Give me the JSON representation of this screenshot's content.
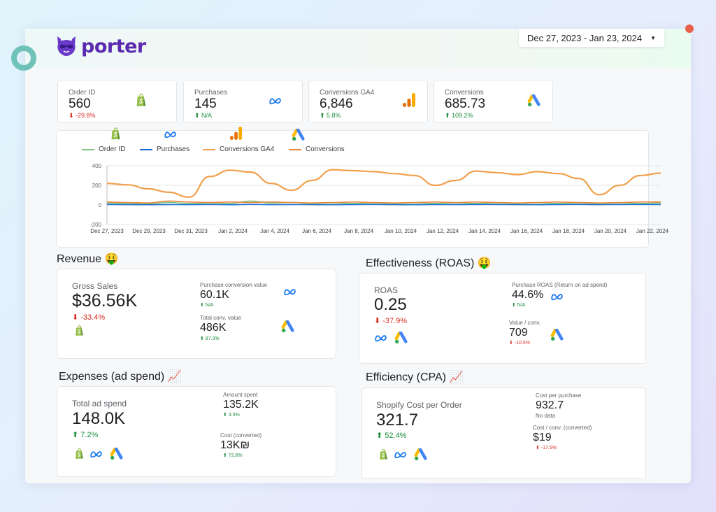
{
  "header": {
    "brand": "porter",
    "date_range": "Dec 27, 2023 - Jan 23, 2024"
  },
  "kpis": [
    {
      "label": "Order ID",
      "value": "560",
      "delta": "⬇ -29.8%",
      "trend": "down",
      "icon": "shopify-icon"
    },
    {
      "label": "Purchases",
      "value": "145",
      "delta": "⬆ N/A",
      "trend": "up",
      "icon": "meta-icon"
    },
    {
      "label": "Conversions GA4",
      "value": "6,846",
      "delta": "⬆ 5.8%",
      "trend": "up",
      "icon": "google-analytics-icon"
    },
    {
      "label": "Conversions",
      "value": "685.73",
      "delta": "⬆ 109.2%",
      "trend": "up",
      "icon": "google-ads-icon"
    }
  ],
  "chart_data": {
    "type": "line",
    "title": "",
    "xlabel": "",
    "ylabel": "",
    "ylim": [
      -200,
      400
    ],
    "yticks": [
      "400",
      "200",
      "0",
      "-200"
    ],
    "xticks": [
      "Dec 27, 2023",
      "Dec 29, 2023",
      "Dec 31, 2023",
      "Jan 2, 2024",
      "Jan 4, 2024",
      "Jan 6, 2024",
      "Jan 8, 2024",
      "Jan 10, 2024",
      "Jan 12, 2024",
      "Jan 14, 2024",
      "Jan 16, 2024",
      "Jan 18, 2024",
      "Jan 20, 2024",
      "Jan 22, 2024"
    ],
    "grid": true,
    "legend_position": "top-left",
    "series": [
      {
        "name": "Order ID",
        "color": "#7cc47f",
        "icon": "shopify-icon",
        "values": [
          20,
          15,
          10,
          25,
          15,
          20,
          15,
          40,
          20,
          25,
          15,
          20,
          15,
          20,
          15,
          20,
          15,
          20,
          15,
          20,
          15,
          20,
          15,
          20,
          15,
          20,
          15,
          20
        ]
      },
      {
        "name": "Purchases",
        "color": "#1a6fd6",
        "icon": "meta-icon",
        "values": [
          5,
          3,
          2,
          4,
          3,
          5,
          2,
          6,
          3,
          4,
          3,
          2,
          4,
          5,
          3,
          2,
          4,
          3,
          5,
          4,
          3,
          2,
          4,
          5,
          3,
          4,
          5,
          4
        ]
      },
      {
        "name": "Conversions GA4",
        "color": "#f0a04b",
        "icon": "google-analytics-icon",
        "values": [
          220,
          205,
          165,
          130,
          80,
          290,
          355,
          335,
          220,
          150,
          250,
          360,
          350,
          340,
          320,
          300,
          200,
          250,
          345,
          330,
          310,
          340,
          320,
          270,
          105,
          200,
          300,
          325
        ]
      },
      {
        "name": "Conversions",
        "color": "#e8873a",
        "icon": "google-ads-icon",
        "values": [
          30,
          25,
          20,
          40,
          30,
          25,
          30,
          25,
          30,
          25,
          20,
          25,
          30,
          25,
          20,
          25,
          30,
          25,
          30,
          25,
          20,
          25,
          30,
          25,
          20,
          25,
          30,
          30
        ]
      }
    ]
  },
  "revenue": {
    "title": "Revenue 🤑",
    "gross_label": "Gross Sales",
    "gross_value": "$36.56K",
    "gross_delta": "⬇ -33.4%",
    "pcv_label": "Purchase conversion value",
    "pcv_value": "60.1K",
    "pcv_delta": "⬆ N/A",
    "tcv_label": "Total conv. value",
    "tcv_value": "486K",
    "tcv_delta": "⬆ 87.3%"
  },
  "roas": {
    "title": "Effectiveness (ROAS) 🤑",
    "label": "ROAS",
    "value": "0.25",
    "delta": "⬇ -37.9%",
    "purchase_label": "Purchase ROAS (Return on ad spend)",
    "purchase_value": "44.6%",
    "purchase_delta": "⬆ N/A",
    "vc_label": "Value / conv.",
    "vc_value": "709",
    "vc_delta": "⬇ -10.5%"
  },
  "expenses": {
    "title": "Expenses (ad spend) 📈",
    "total_label": "Total ad spend",
    "total_value": "148.0K",
    "total_delta": "⬆ 7.2%",
    "amount_label": "Amount spent",
    "amount_value": "135.2K",
    "amount_delta": "⬆ 3.5%",
    "cost_label": "Cost (converted)",
    "cost_value": "13K₪",
    "cost_delta": "⬆ 72.6%"
  },
  "efficiency": {
    "title": "Efficiency (CPA) 📈",
    "shop_label": "Shopify Cost per Order",
    "shop_value": "321.7",
    "shop_delta": "⬆ 52.4%",
    "cpp_label": "Cost per purchase",
    "cpp_value": "932.7",
    "cpp_note": "No data",
    "cc_label": "Cost / conv. (converted)",
    "cc_value": "$19",
    "cc_delta": "⬇ -17.5%"
  }
}
